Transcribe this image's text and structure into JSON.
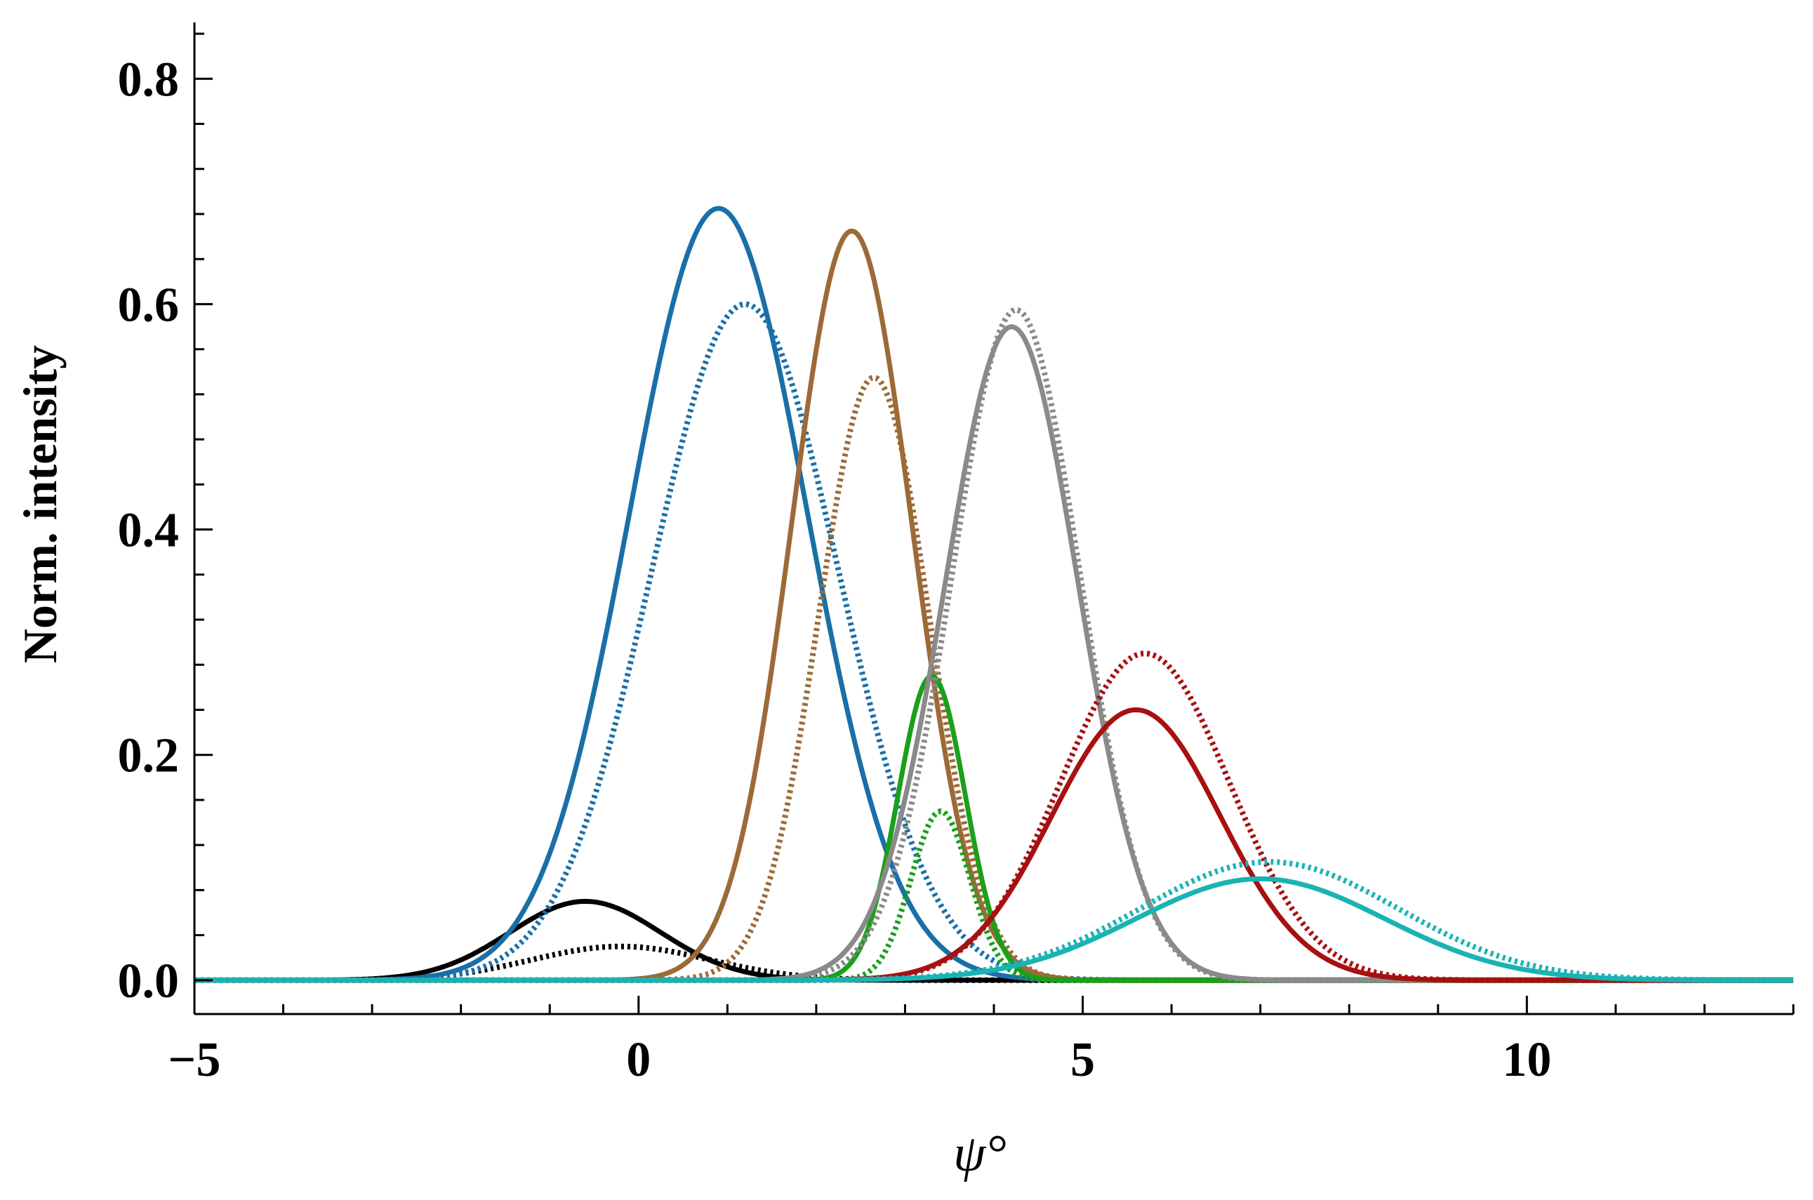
{
  "chart_data": {
    "type": "line",
    "title": "",
    "xlabel": "ψ°",
    "ylabel": "Norm. intensity",
    "xlim": [
      -5,
      13
    ],
    "ylim": [
      -0.03,
      0.85
    ],
    "x_ticks": [
      -5,
      0,
      5,
      10
    ],
    "x_tick_labels": [
      "−5",
      "0",
      "5",
      "10"
    ],
    "y_ticks": [
      0.0,
      0.2,
      0.4,
      0.6,
      0.8
    ],
    "y_tick_labels": [
      "0.0",
      "0.2",
      "0.4",
      "0.6",
      "0.8"
    ],
    "grid": false,
    "legend": "none",
    "series": [
      {
        "style": "solid",
        "color": "#000000",
        "peak_x": -0.6,
        "peak_y": 0.07,
        "sigma": 0.85
      },
      {
        "style": "dotted",
        "color": "#000000",
        "peak_x": -0.2,
        "peak_y": 0.03,
        "sigma": 1.0
      },
      {
        "style": "solid",
        "color": "#1a6fa8",
        "peak_x": 0.9,
        "peak_y": 0.685,
        "sigma": 1.0
      },
      {
        "style": "dotted",
        "color": "#1a6fa8",
        "peak_x": 1.2,
        "peak_y": 0.6,
        "sigma": 1.05
      },
      {
        "style": "solid",
        "color": "#9c6a38",
        "peak_x": 2.4,
        "peak_y": 0.665,
        "sigma": 0.68
      },
      {
        "style": "dotted",
        "color": "#9c6a38",
        "peak_x": 2.65,
        "peak_y": 0.535,
        "sigma": 0.62
      },
      {
        "style": "solid",
        "color": "#1aa01a",
        "peak_x": 3.3,
        "peak_y": 0.27,
        "sigma": 0.38
      },
      {
        "style": "dotted",
        "color": "#1aa01a",
        "peak_x": 3.4,
        "peak_y": 0.15,
        "sigma": 0.33
      },
      {
        "style": "solid",
        "color": "#8a8a8a",
        "peak_x": 4.2,
        "peak_y": 0.58,
        "sigma": 0.75
      },
      {
        "style": "dotted",
        "color": "#8a8a8a",
        "peak_x": 4.25,
        "peak_y": 0.595,
        "sigma": 0.72
      },
      {
        "style": "solid",
        "color": "#a81010",
        "peak_x": 5.6,
        "peak_y": 0.24,
        "sigma": 0.95
      },
      {
        "style": "dotted",
        "color": "#a81010",
        "peak_x": 5.7,
        "peak_y": 0.29,
        "sigma": 0.95
      },
      {
        "style": "solid",
        "color": "#1ab3b3",
        "peak_x": 7.0,
        "peak_y": 0.09,
        "sigma": 1.4
      },
      {
        "style": "dotted",
        "color": "#1ab3b3",
        "peak_x": 7.1,
        "peak_y": 0.105,
        "sigma": 1.45
      }
    ]
  }
}
